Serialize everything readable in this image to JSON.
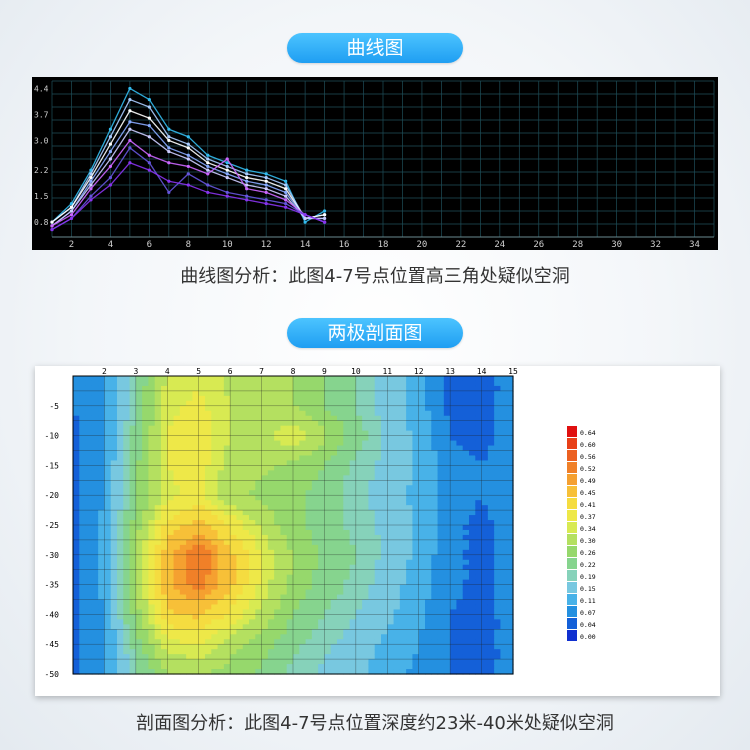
{
  "header1": {
    "label": "曲线图"
  },
  "caption1": "曲线图分析：此图4-7号点位置高三角处疑似空洞",
  "header2": {
    "label": "两极剖面图"
  },
  "caption2": "剖面图分析：此图4-7号点位置深度约23米-40米处疑似空洞",
  "colors": {
    "pill": "#1f9ef2",
    "curve_bg": "#000000",
    "grid": "#1f4f5a"
  },
  "chart_data": [
    {
      "type": "line",
      "x_ticks": [
        "2",
        "4",
        "6",
        "8",
        "10",
        "12",
        "14",
        "16",
        "18",
        "20",
        "22",
        "24",
        "26",
        "28",
        "30",
        "32",
        "34"
      ],
      "y_ticks": [
        "4.4",
        "3.7",
        "3.0",
        "2.2",
        "1.5",
        "0.8"
      ],
      "xlim": [
        1,
        35
      ],
      "ylim": [
        0.4,
        4.6
      ],
      "grid": true,
      "x": [
        1,
        2,
        3,
        4,
        5,
        6,
        7,
        8,
        9,
        10,
        11,
        12,
        13,
        14,
        15
      ],
      "series": [
        {
          "color": "#33bbee",
          "values": [
            0.8,
            1.3,
            2.2,
            3.3,
            4.4,
            4.1,
            3.3,
            3.1,
            2.6,
            2.4,
            2.2,
            2.1,
            1.9,
            0.8,
            1.1
          ]
        },
        {
          "color": "#aaccff",
          "values": [
            0.8,
            1.2,
            2.1,
            3.1,
            4.1,
            3.9,
            3.1,
            2.9,
            2.5,
            2.3,
            2.1,
            2.0,
            1.8,
            0.9,
            1.0
          ]
        },
        {
          "color": "#ffffff",
          "values": [
            0.8,
            1.2,
            2.0,
            2.9,
            3.8,
            3.6,
            3.0,
            2.8,
            2.4,
            2.2,
            2.0,
            1.9,
            1.7,
            0.9,
            1.0
          ]
        },
        {
          "color": "#88aaff",
          "values": [
            0.7,
            1.1,
            1.9,
            2.7,
            3.5,
            3.4,
            2.8,
            2.6,
            2.3,
            2.1,
            1.9,
            1.8,
            1.6,
            0.9,
            0.9
          ]
        },
        {
          "color": "#ccccff",
          "values": [
            0.7,
            1.1,
            1.8,
            2.5,
            3.3,
            3.1,
            2.7,
            2.5,
            2.2,
            2.0,
            1.8,
            1.7,
            1.5,
            0.9,
            0.9
          ]
        },
        {
          "color": "#cc66ff",
          "values": [
            0.7,
            1.0,
            1.7,
            2.3,
            3.0,
            2.6,
            2.4,
            2.3,
            2.1,
            2.5,
            1.7,
            1.6,
            1.4,
            1.0,
            0.8
          ]
        },
        {
          "color": "#6655dd",
          "values": [
            0.6,
            0.9,
            1.5,
            2.0,
            2.8,
            2.4,
            1.6,
            2.1,
            1.8,
            1.6,
            1.5,
            1.4,
            1.3,
            1.0,
            0.8
          ]
        },
        {
          "color": "#8833ee",
          "values": [
            0.6,
            0.9,
            1.4,
            1.8,
            2.4,
            2.2,
            1.9,
            1.8,
            1.6,
            1.5,
            1.4,
            1.3,
            1.2,
            1.0,
            0.8
          ]
        }
      ]
    },
    {
      "type": "heatmap",
      "x_ticks": [
        "2",
        "3",
        "4",
        "5",
        "6",
        "7",
        "8",
        "9",
        "10",
        "11",
        "12",
        "13",
        "14",
        "15"
      ],
      "y_ticks": [
        "-5",
        "-10",
        "-15",
        "-20",
        "-25",
        "-30",
        "-35",
        "-40",
        "-45",
        "-50"
      ],
      "xlim": [
        1,
        15
      ],
      "ylim": [
        0,
        -50
      ],
      "grid": true,
      "legend": [
        "0.64",
        "0.60",
        "0.56",
        "0.52",
        "0.49",
        "0.45",
        "0.41",
        "0.37",
        "0.34",
        "0.30",
        "0.26",
        "0.22",
        "0.19",
        "0.15",
        "0.11",
        "0.07",
        "0.04",
        "0.00"
      ],
      "legend_colors": [
        "#e01010",
        "#e84018",
        "#ec6020",
        "#f08028",
        "#f5a030",
        "#f7c038",
        "#f5dc40",
        "#eee848",
        "#d8ea52",
        "#b4e060",
        "#96d86c",
        "#86d48e",
        "#86d2ba",
        "#78c8e0",
        "#48b2e8",
        "#2490e0",
        "#1460d8",
        "#1030d0"
      ],
      "grid_x": [
        1,
        2,
        3,
        4,
        5,
        6,
        7,
        8,
        9,
        10,
        11,
        12,
        13,
        14,
        15
      ],
      "grid_y": [
        0,
        -5,
        -10,
        -15,
        -20,
        -25,
        -30,
        -35,
        -40,
        -45,
        -50
      ],
      "values": [
        [
          0.08,
          0.1,
          0.22,
          0.35,
          0.36,
          0.33,
          0.31,
          0.3,
          0.26,
          0.22,
          0.17,
          0.13,
          0.06,
          0.05,
          0.09
        ],
        [
          0.07,
          0.1,
          0.22,
          0.36,
          0.38,
          0.34,
          0.32,
          0.3,
          0.26,
          0.22,
          0.17,
          0.13,
          0.06,
          0.05,
          0.09
        ],
        [
          0.06,
          0.1,
          0.24,
          0.37,
          0.4,
          0.34,
          0.33,
          0.37,
          0.31,
          0.24,
          0.18,
          0.14,
          0.07,
          0.05,
          0.1
        ],
        [
          0.06,
          0.11,
          0.25,
          0.37,
          0.39,
          0.32,
          0.31,
          0.29,
          0.26,
          0.21,
          0.18,
          0.14,
          0.09,
          0.07,
          0.1
        ],
        [
          0.06,
          0.11,
          0.25,
          0.36,
          0.38,
          0.31,
          0.29,
          0.27,
          0.24,
          0.2,
          0.17,
          0.14,
          0.09,
          0.07,
          0.1
        ],
        [
          0.06,
          0.12,
          0.28,
          0.42,
          0.47,
          0.4,
          0.33,
          0.27,
          0.24,
          0.21,
          0.18,
          0.14,
          0.08,
          0.06,
          0.09
        ],
        [
          0.06,
          0.12,
          0.3,
          0.48,
          0.56,
          0.46,
          0.37,
          0.3,
          0.25,
          0.22,
          0.18,
          0.14,
          0.08,
          0.06,
          0.09
        ],
        [
          0.06,
          0.12,
          0.3,
          0.48,
          0.54,
          0.46,
          0.36,
          0.29,
          0.24,
          0.21,
          0.17,
          0.13,
          0.08,
          0.06,
          0.09
        ],
        [
          0.06,
          0.11,
          0.28,
          0.44,
          0.46,
          0.4,
          0.33,
          0.26,
          0.22,
          0.19,
          0.16,
          0.12,
          0.07,
          0.06,
          0.08
        ],
        [
          0.06,
          0.1,
          0.24,
          0.36,
          0.37,
          0.32,
          0.28,
          0.23,
          0.2,
          0.17,
          0.14,
          0.11,
          0.07,
          0.06,
          0.08
        ],
        [
          0.06,
          0.1,
          0.21,
          0.3,
          0.31,
          0.28,
          0.25,
          0.21,
          0.18,
          0.16,
          0.13,
          0.1,
          0.07,
          0.06,
          0.08
        ]
      ]
    }
  ]
}
